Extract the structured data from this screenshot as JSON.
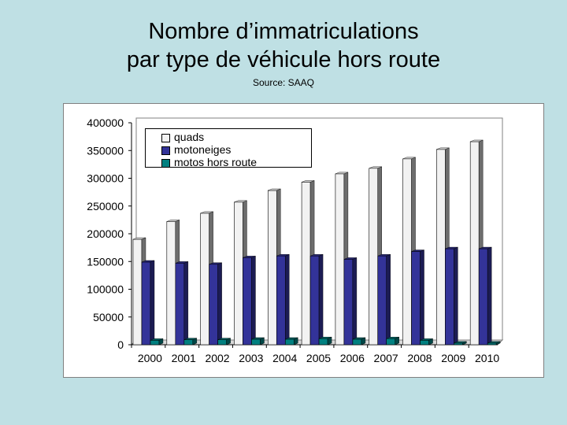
{
  "title": {
    "line1": "Nombre d’immatriculations",
    "line2": "par type de véhicule hors route"
  },
  "source": "Source: SAAQ",
  "chart_data": {
    "type": "bar",
    "title": "Nombre d’immatriculations par type de véhicule hors route",
    "subtitle": "Source: SAAQ",
    "categories": [
      "2000",
      "2001",
      "2002",
      "2003",
      "2004",
      "2005",
      "2006",
      "2007",
      "2008",
      "2009",
      "2010"
    ],
    "series": [
      {
        "name": "quads",
        "color": "#f2f2f2",
        "values": [
          190000,
          222000,
          237000,
          257000,
          278000,
          293000,
          308000,
          318000,
          335000,
          352000,
          366000
        ]
      },
      {
        "name": "motoneiges",
        "color": "#333399",
        "values": [
          149000,
          147000,
          145000,
          157000,
          160000,
          160000,
          154000,
          160000,
          168000,
          173000,
          173000
        ]
      },
      {
        "name": "motos hors route",
        "color": "#008080",
        "values": [
          8000,
          9000,
          9000,
          10000,
          10000,
          11000,
          10000,
          11000,
          8000,
          3000,
          3000
        ]
      }
    ],
    "ylim": [
      0,
      400000
    ],
    "yticks": [
      0,
      50000,
      100000,
      150000,
      200000,
      250000,
      300000,
      350000,
      400000
    ],
    "xlabel": "",
    "ylabel": "",
    "grid": false,
    "legend_position": "top-left"
  }
}
